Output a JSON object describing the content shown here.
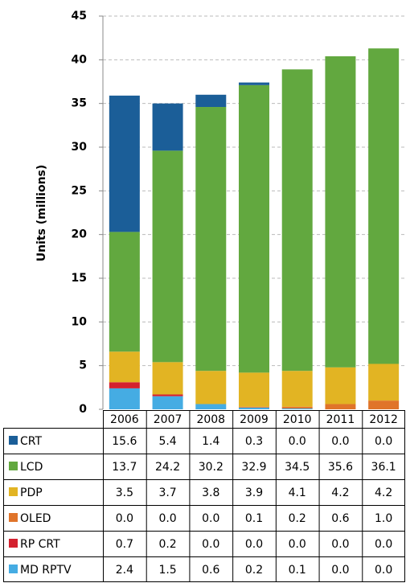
{
  "chart_data": {
    "type": "stacked_bar",
    "y_label": "Units (millions)",
    "categories": [
      "2006",
      "2007",
      "2008",
      "2009",
      "2010",
      "2011",
      "2012"
    ],
    "ylim": [
      0,
      45
    ],
    "yticks": [
      0,
      5,
      10,
      15,
      20,
      25,
      30,
      35,
      40,
      45
    ],
    "grid": true,
    "series": [
      {
        "name": "CRT",
        "color": "#1b5e98",
        "values": [
          15.6,
          5.4,
          1.4,
          0.3,
          0,
          0,
          0
        ],
        "value_labels": [
          "15.6",
          "5.4",
          "1.4",
          "0.3",
          "0.0",
          "0.0",
          "0.0"
        ]
      },
      {
        "name": "LCD",
        "color": "#62a83f",
        "values": [
          13.7,
          24.2,
          30.2,
          32.9,
          34.5,
          35.6,
          36.1
        ],
        "value_labels": [
          "13.7",
          "24.2",
          "30.2",
          "32.9",
          "34.5",
          "35.6",
          "36.1"
        ]
      },
      {
        "name": "PDP",
        "color": "#e2b423",
        "values": [
          3.5,
          3.7,
          3.8,
          3.9,
          4.1,
          4.2,
          4.2
        ],
        "value_labels": [
          "3.5",
          "3.7",
          "3.8",
          "3.9",
          "4.1",
          "4.2",
          "4.2"
        ]
      },
      {
        "name": "OLED",
        "color": "#e0742a",
        "values": [
          0,
          0,
          0,
          0.1,
          0.2,
          0.6,
          1
        ],
        "value_labels": [
          "0.0",
          "0.0",
          "0.0",
          "0.1",
          "0.2",
          "0.6",
          "1.0"
        ]
      },
      {
        "name": "RP CRT",
        "color": "#d4212f",
        "values": [
          0.7,
          0.2,
          0,
          0,
          0,
          0,
          0
        ],
        "value_labels": [
          "0.7",
          "0.2",
          "0.0",
          "0.0",
          "0.0",
          "0.0",
          "0.0"
        ]
      },
      {
        "name": "MD RPTV",
        "color": "#45ace3",
        "values": [
          2.4,
          1.5,
          0.6,
          0.2,
          0.1,
          0,
          0
        ],
        "value_labels": [
          "2.4",
          "1.5",
          "0.6",
          "0.2",
          "0.1",
          "0.0",
          "0.0"
        ]
      }
    ]
  }
}
